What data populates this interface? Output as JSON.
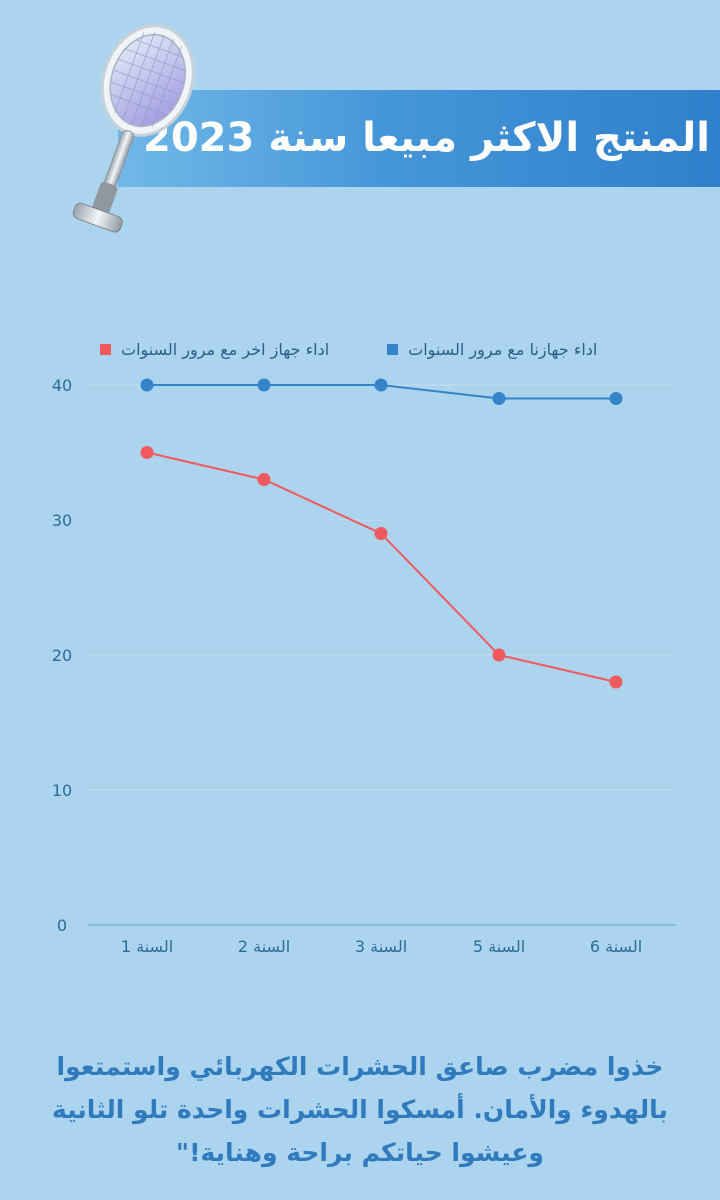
{
  "banner": {
    "title": "المنتج الاكثر مبيعا سنة 2023"
  },
  "caption": "خذوا مضرب صاعق الحشرات الكهربائي واستمتعوا بالهدوء والأمان. أمسكوا الحشرات واحدة تلو الثانية وعيشوا حياتكم براحة وهناية!\"",
  "icons": {
    "product": "electric-fly-swatter-icon"
  },
  "colors": {
    "background": "#acd4ee",
    "series_ours": "#3384c9",
    "series_other": "#f05a5f",
    "axis_text": "#2d6c95"
  },
  "chart_data": {
    "type": "line",
    "categories": [
      "السنة 1",
      "السنة 2",
      "السنة 3",
      "السنة 5",
      "السنة 6"
    ],
    "series": [
      {
        "name": "اداء جهازنا مع مرور السنوات",
        "values": [
          40,
          40,
          40,
          39,
          39
        ],
        "color": "#3384c9"
      },
      {
        "name": "اداء جهاز اخر مع مرور السنوات",
        "values": [
          35,
          33,
          29,
          20,
          18
        ],
        "color": "#f05a5f"
      }
    ],
    "yticks": [
      0,
      10,
      20,
      30,
      40
    ],
    "ylim": [
      0,
      40
    ],
    "grid": true,
    "legend_position": "top"
  }
}
